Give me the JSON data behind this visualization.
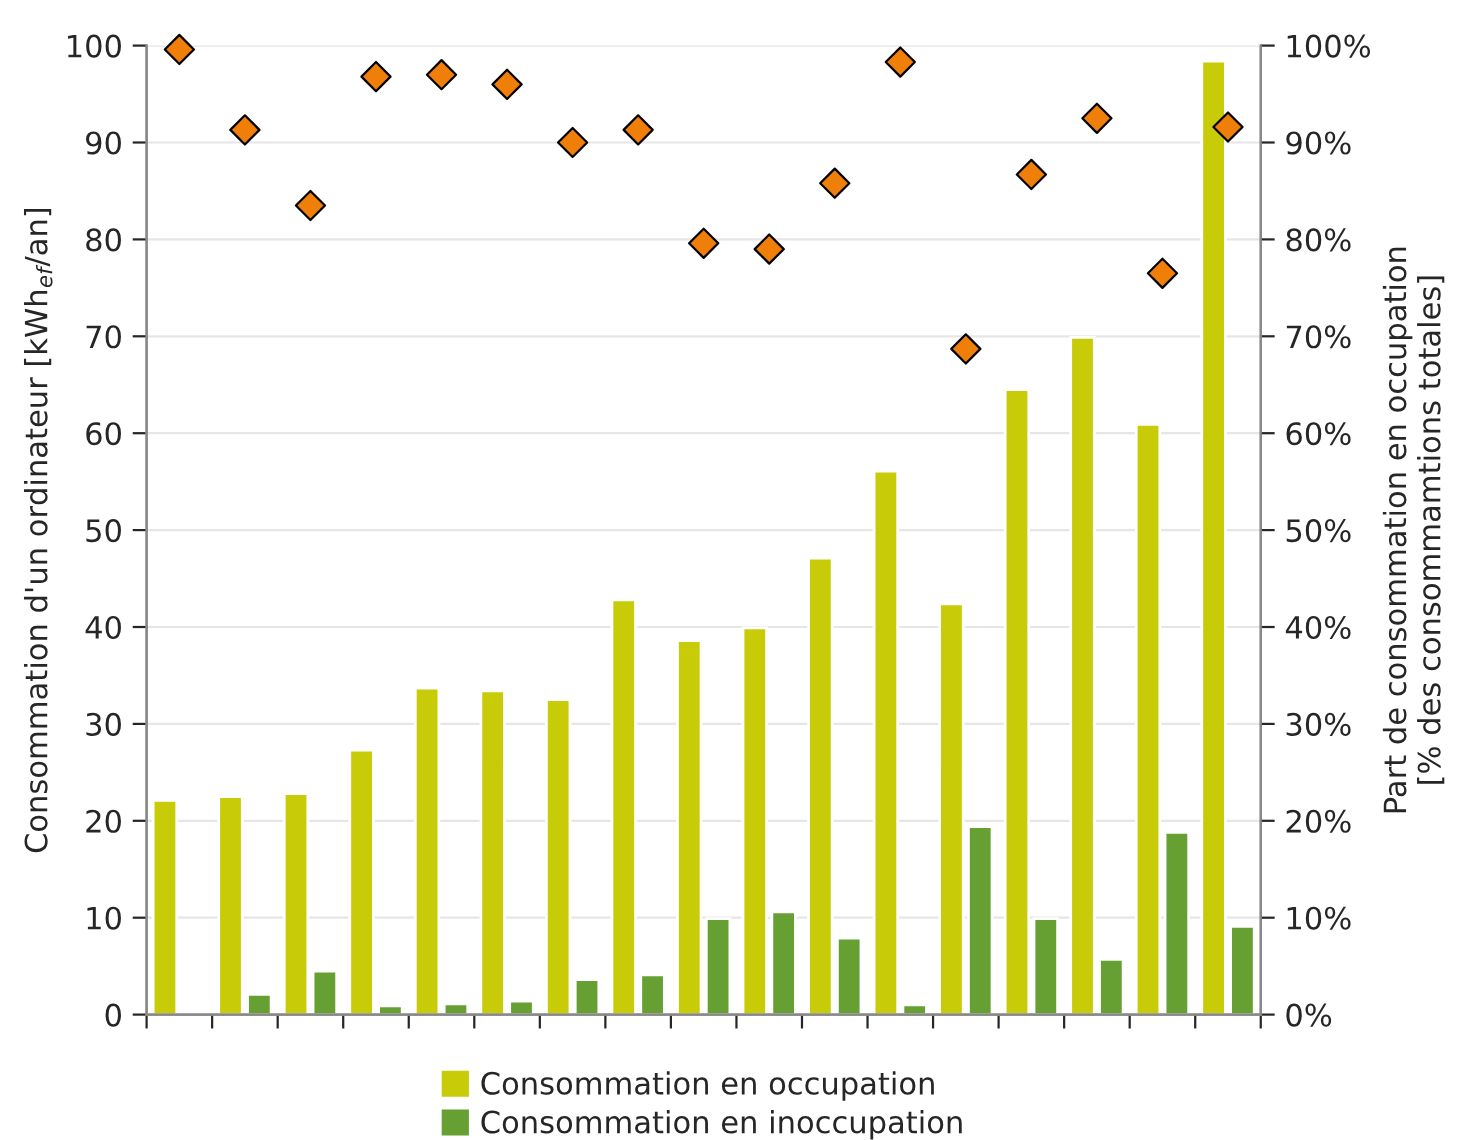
{
  "chart_data": {
    "type": "bar",
    "ylabel": "Consommation d'un ordinateur [kWh$_{ef}$/an]",
    "y2label": "Part de consommation en occupation\n[% des consommamtions totales]",
    "categories": [
      null,
      null,
      null,
      null,
      null,
      null,
      null,
      null,
      null,
      null,
      null,
      null,
      null,
      null,
      null,
      null,
      null
    ],
    "series": [
      {
        "name": "Consommation en occupation",
        "color": "#c8cc08",
        "values": [
          22.1,
          22.5,
          22.8,
          27.3,
          33.7,
          33.4,
          32.5,
          42.8,
          38.6,
          39.9,
          47.1,
          56.1,
          42.4,
          64.5,
          69.9,
          60.9,
          98.4
        ]
      },
      {
        "name": "Consommation en inoccupation",
        "color": "#66a032",
        "values": [
          null,
          2.1,
          4.5,
          0.9,
          1.1,
          1.4,
          3.6,
          4.1,
          9.9,
          10.6,
          7.9,
          1.0,
          19.4,
          9.9,
          5.7,
          18.8,
          9.1
        ]
      },
      {
        "type": "scatter",
        "axis": "y2",
        "color": "#f07f0a",
        "marker": "diamond",
        "values": [
          99.6,
          91.3,
          83.5,
          96.8,
          97.0,
          96.0,
          90.0,
          91.3,
          79.6,
          79.0,
          85.8,
          98.3,
          68.7,
          86.7,
          92.5,
          76.5,
          91.6
        ]
      }
    ],
    "ylim": [
      0,
      100
    ],
    "yticks": [
      0,
      10,
      20,
      30,
      40,
      50,
      60,
      70,
      80,
      90,
      100
    ],
    "y2lim": [
      0,
      100
    ],
    "y2ticks": [
      {
        "value": 0,
        "label": "0%"
      },
      {
        "value": 10,
        "label": "10%"
      },
      {
        "value": 20,
        "label": "20%"
      },
      {
        "value": 30,
        "label": "30%"
      },
      {
        "value": 40,
        "label": "40%"
      },
      {
        "value": 50,
        "label": "50%"
      },
      {
        "value": 60,
        "label": "60%"
      },
      {
        "value": 70,
        "label": "70%"
      },
      {
        "value": 80,
        "label": "80%"
      },
      {
        "value": 90,
        "label": "90%"
      },
      {
        "value": 100,
        "label": "100%"
      }
    ],
    "grid": "y",
    "legend": "bottom"
  }
}
